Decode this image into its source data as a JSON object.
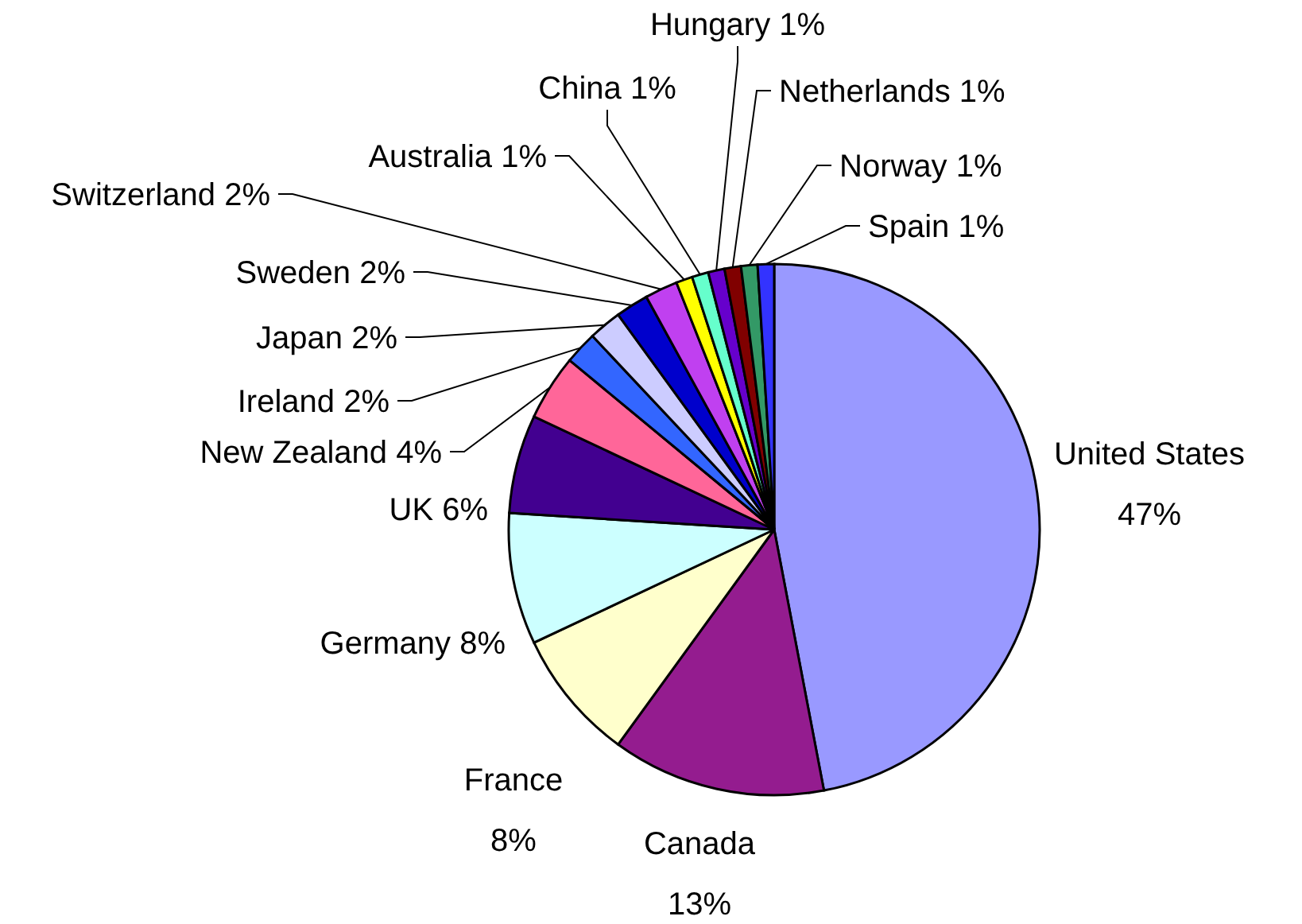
{
  "chart_data": {
    "type": "pie",
    "categories": [
      "United States",
      "Canada",
      "France",
      "Germany",
      "UK",
      "New Zealand",
      "Ireland",
      "Japan",
      "Sweden",
      "Switzerland",
      "Australia",
      "China",
      "Hungary",
      "Netherlands",
      "Norway",
      "Spain"
    ],
    "values": [
      47,
      13,
      8,
      8,
      6,
      4,
      2,
      2,
      2,
      2,
      1,
      1,
      1,
      1,
      1,
      1
    ],
    "value_labels": [
      "47%",
      "13%",
      "8%",
      "8%",
      "6%",
      "4%",
      "2%",
      "2%",
      "2%",
      "2%",
      "1%",
      "1%",
      "1%",
      "1%",
      "1%",
      "1%"
    ],
    "colors": [
      "#9999ff",
      "#941c8f",
      "#ffffcc",
      "#ccffff",
      "#420090",
      "#ff6699",
      "#3366ff",
      "#ccccff",
      "#0000cc",
      "#c040f0",
      "#ffff00",
      "#66ffcc",
      "#6600cc",
      "#800000",
      "#339966",
      "#3333ff"
    ]
  }
}
